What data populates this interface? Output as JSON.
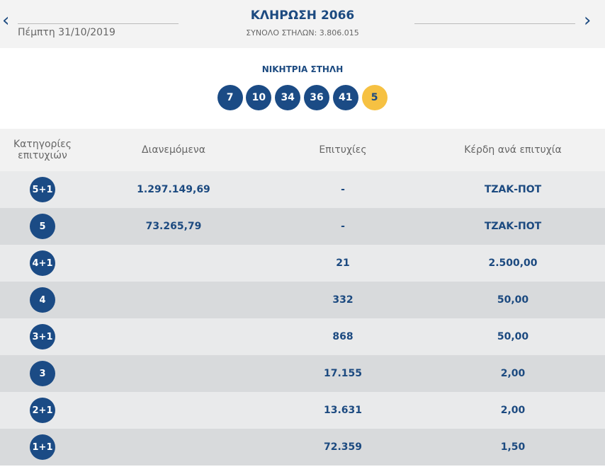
{
  "header": {
    "title": "ΚΛΗΡΩΣΗ 2066",
    "date": "Πέμπτη 31/10/2019",
    "total_columns": "ΣΥΝΟΛΟ ΣΤΗΛΩΝ: 3.806.015"
  },
  "winning_column": {
    "label": "ΝΙΚΗΤΡΙΑ ΣΤΗΛΗ",
    "numbers": [
      7,
      10,
      34,
      36,
      41
    ],
    "bonus": 5
  },
  "table": {
    "headers": [
      "Κατηγορίες επιτυχιών",
      "Διανεμόμενα",
      "Επιτυχίες",
      "Κέρδη ανά επιτυχία"
    ],
    "rows": [
      {
        "category": "5+1",
        "distributed": "1.297.149,69",
        "winners": "-",
        "prize": "ΤΖΑΚ-ΠΟΤ"
      },
      {
        "category": "5",
        "distributed": "73.265,79",
        "winners": "-",
        "prize": "ΤΖΑΚ-ΠΟΤ"
      },
      {
        "category": "4+1",
        "winners": "21",
        "prize": "2.500,00"
      },
      {
        "category": "4",
        "winners": "332",
        "prize": "50,00"
      },
      {
        "category": "3+1",
        "winners": "868",
        "prize": "50,00"
      },
      {
        "category": "3",
        "winners": "17.155",
        "prize": "2,00"
      },
      {
        "category": "2+1",
        "winners": "13.631",
        "prize": "2,00"
      },
      {
        "category": "1+1",
        "winners": "72.359",
        "prize": "1,50"
      }
    ]
  }
}
